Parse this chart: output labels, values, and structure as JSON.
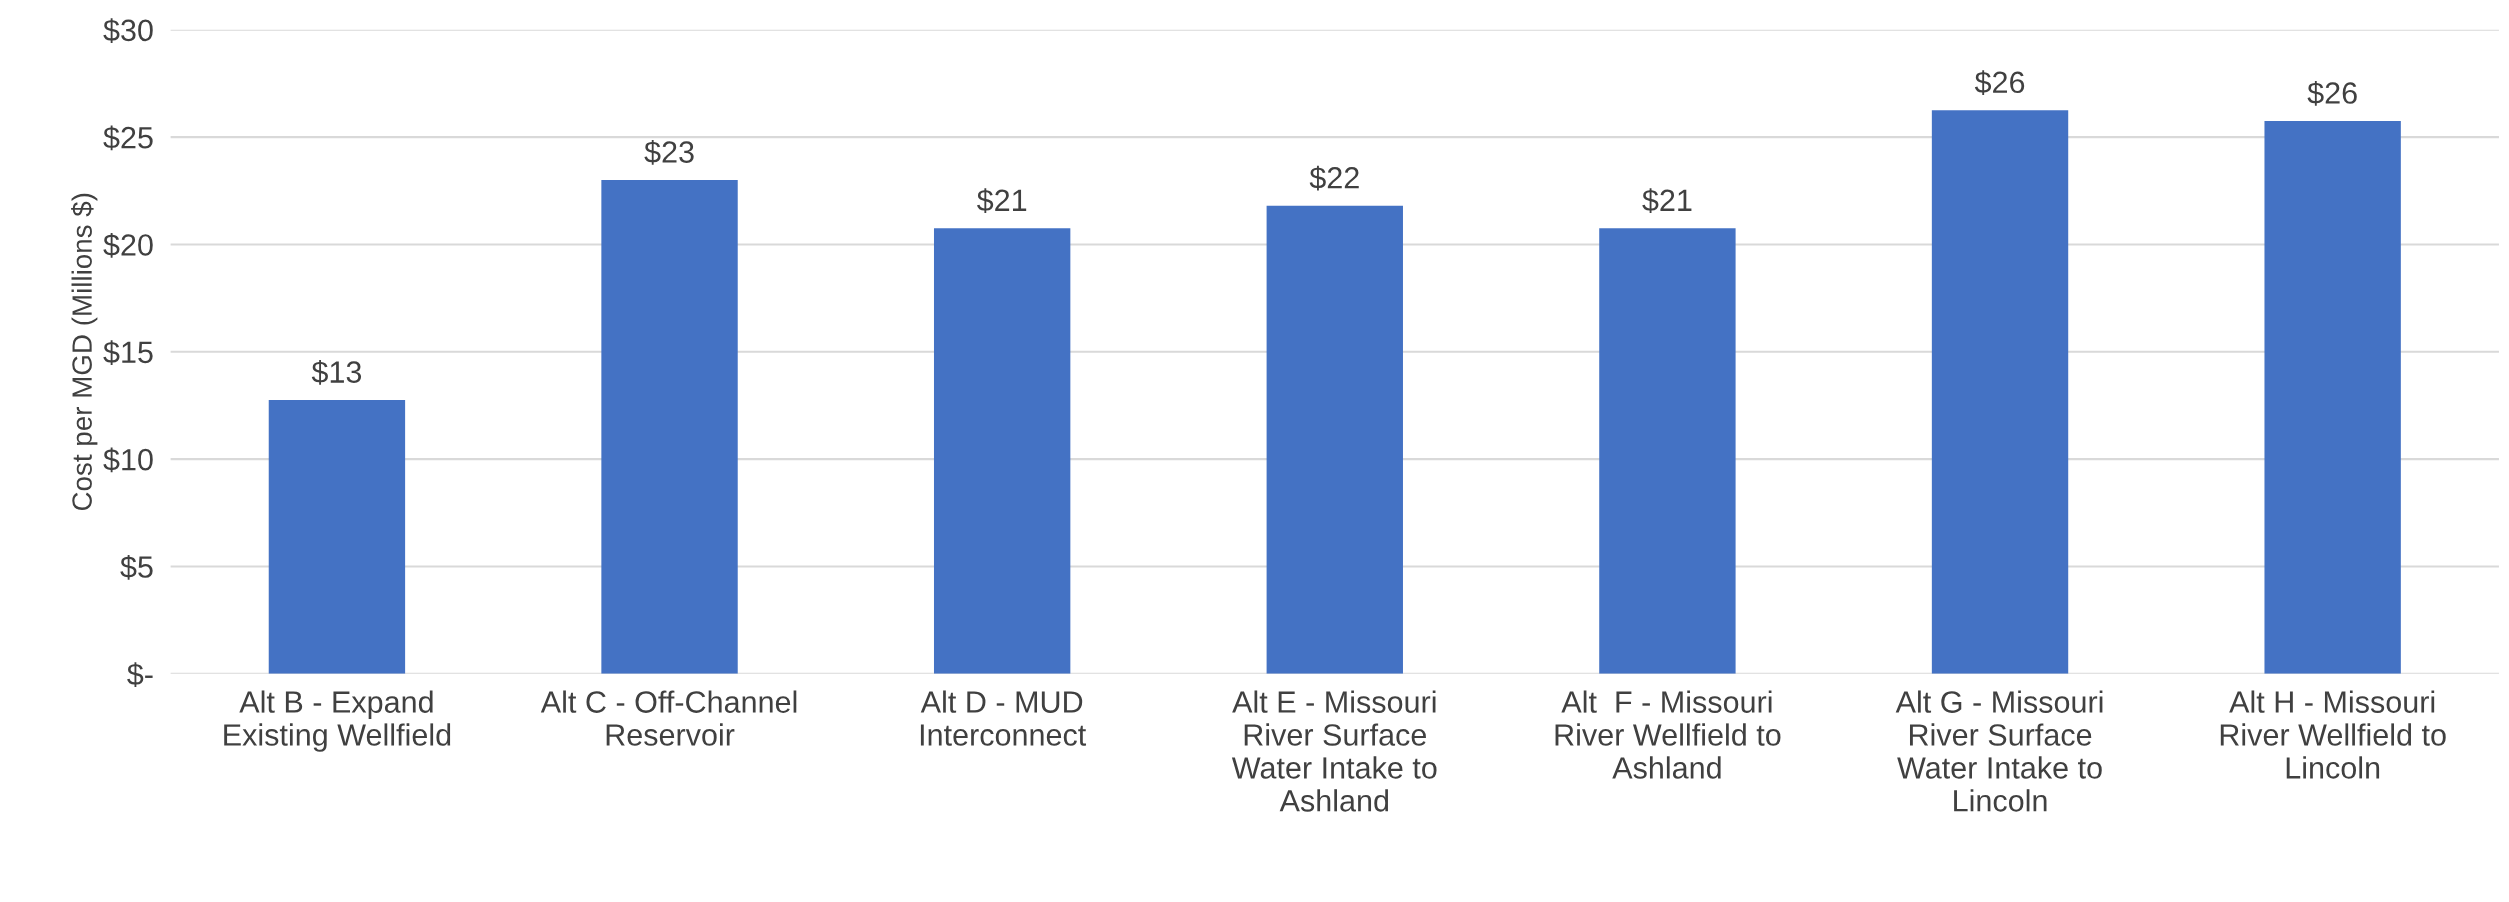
{
  "chart_data": {
    "type": "bar",
    "ylabel": "Cost per MGD (Millions $)",
    "categories": [
      "Alt B - Expand\nExisting Wellfield",
      "Alt C - Off-Channel\nReservoir",
      "Alt D - MUD\nInterconnect",
      "Alt E - Missouri\nRiver Surface\nWater Intake to\nAshland",
      "Alt  F - Missouri\nRiver Wellfield to\nAshland",
      "Alt G - Missouri\nRiver Surface\nWater Intake to\nLincoln",
      "Alt H - Missouri\nRiver Wellfield to\nLincoln"
    ],
    "values": [
      12.75,
      23.0,
      20.75,
      21.8,
      20.75,
      26.25,
      25.75
    ],
    "value_labels": [
      "$13",
      "$23",
      "$21",
      "$22",
      "$21",
      "$26",
      "$26"
    ],
    "color": "#4472c4",
    "ylim": [
      0,
      30
    ],
    "yticks": [
      {
        "value": 0,
        "label": "$-"
      },
      {
        "value": 5,
        "label": "$5"
      },
      {
        "value": 10,
        "label": "$10"
      },
      {
        "value": 15,
        "label": "$15"
      },
      {
        "value": 20,
        "label": "$20"
      },
      {
        "value": 25,
        "label": "$25"
      },
      {
        "value": 30,
        "label": "$30"
      }
    ],
    "grid": "y",
    "legend": false
  }
}
